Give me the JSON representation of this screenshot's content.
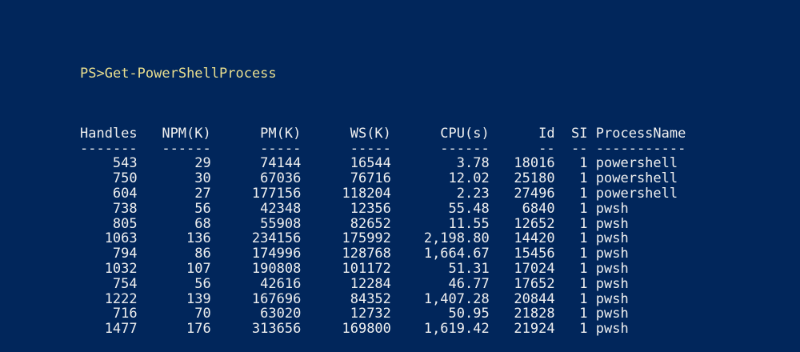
{
  "terminal": {
    "prompt": "PS>",
    "command": "Get-PowerShellProcess",
    "colors": {
      "background": "#01265B",
      "command_text": "#EADF8F",
      "output_text": "#EFEFEF"
    },
    "table": {
      "headers": [
        "Handles",
        "NPM(K)",
        "PM(K)",
        "WS(K)",
        "CPU(s)",
        "Id",
        "SI",
        "ProcessName"
      ],
      "underlines": [
        "-------",
        "------",
        "-----",
        "-----",
        "------",
        "--",
        "--",
        "-----------"
      ],
      "column_keys": [
        "handles",
        "npm-k",
        "pm-k",
        "ws-k",
        "cpu-s",
        "id",
        "si",
        "processname"
      ],
      "rows": [
        [
          "543",
          "29",
          "74144",
          "16544",
          "3.78",
          "18016",
          "1",
          "powershell"
        ],
        [
          "750",
          "30",
          "67036",
          "76716",
          "12.02",
          "25180",
          "1",
          "powershell"
        ],
        [
          "604",
          "27",
          "177156",
          "118204",
          "2.23",
          "27496",
          "1",
          "powershell"
        ],
        [
          "738",
          "56",
          "42348",
          "12356",
          "55.48",
          "6840",
          "1",
          "pwsh"
        ],
        [
          "805",
          "68",
          "55908",
          "82652",
          "11.55",
          "12652",
          "1",
          "pwsh"
        ],
        [
          "1063",
          "136",
          "234156",
          "175992",
          "2,198.80",
          "14420",
          "1",
          "pwsh"
        ],
        [
          "794",
          "86",
          "174996",
          "128768",
          "1,664.67",
          "15456",
          "1",
          "pwsh"
        ],
        [
          "1032",
          "107",
          "190808",
          "101172",
          "51.31",
          "17024",
          "1",
          "pwsh"
        ],
        [
          "754",
          "56",
          "42616",
          "12284",
          "46.77",
          "17652",
          "1",
          "pwsh"
        ],
        [
          "1222",
          "139",
          "167696",
          "84352",
          "1,407.28",
          "20844",
          "1",
          "pwsh"
        ],
        [
          "716",
          "70",
          "63020",
          "12732",
          "50.95",
          "21828",
          "1",
          "pwsh"
        ],
        [
          "1477",
          "176",
          "313656",
          "169800",
          "1,619.42",
          "21924",
          "1",
          "pwsh"
        ]
      ]
    }
  }
}
